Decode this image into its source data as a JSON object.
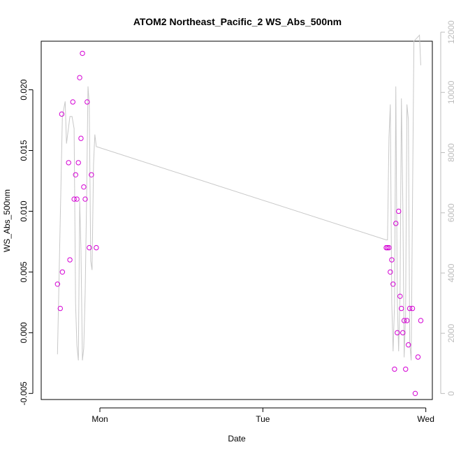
{
  "chart_data": {
    "type": "scatter",
    "title": "ATOM2 Northeast_Pacific_2 WS_Abs_500nm",
    "xlabel": "Date",
    "ylabel": "WS_Abs_500nm",
    "x_ticks": [
      {
        "label": "Mon",
        "value": 1.0
      },
      {
        "label": "Tue",
        "value": 2.0
      },
      {
        "label": "Wed",
        "value": 3.0
      }
    ],
    "xlim": [
      0.64,
      3.04
    ],
    "ylim": [
      -0.0055,
      0.024
    ],
    "y_ticks": [
      -0.005,
      0.0,
      0.005,
      0.01,
      0.015,
      0.02
    ],
    "y_tick_labels": [
      "-0.005",
      "0.000",
      "0.005",
      "0.010",
      "0.015",
      "0.020"
    ],
    "y2lim": [
      -200,
      11700
    ],
    "y2_ticks": [
      0,
      2000,
      4000,
      6000,
      8000,
      10000,
      12000
    ],
    "y2_tick_labels": [
      "0",
      "2000",
      "4000",
      "6000",
      "8000",
      "10000",
      "12000"
    ],
    "grid": false,
    "series": [
      {
        "color": "#d400d4",
        "marker": "open-circle",
        "points": [
          {
            "x": 0.74,
            "y": 0.004
          },
          {
            "x": 0.757,
            "y": 0.002
          },
          {
            "x": 0.766,
            "y": 0.018
          },
          {
            "x": 0.77,
            "y": 0.005
          },
          {
            "x": 0.808,
            "y": 0.014
          },
          {
            "x": 0.816,
            "y": 0.006
          },
          {
            "x": 0.834,
            "y": 0.019
          },
          {
            "x": 0.842,
            "y": 0.011
          },
          {
            "x": 0.851,
            "y": 0.013
          },
          {
            "x": 0.859,
            "y": 0.011
          },
          {
            "x": 0.868,
            "y": 0.014
          },
          {
            "x": 0.876,
            "y": 0.021
          },
          {
            "x": 0.884,
            "y": 0.016
          },
          {
            "x": 0.893,
            "y": 0.023
          },
          {
            "x": 0.901,
            "y": 0.012
          },
          {
            "x": 0.91,
            "y": 0.011
          },
          {
            "x": 0.922,
            "y": 0.019
          },
          {
            "x": 0.935,
            "y": 0.007
          },
          {
            "x": 0.948,
            "y": 0.013
          },
          {
            "x": 0.978,
            "y": 0.007
          },
          {
            "x": 2.757,
            "y": 0.007
          },
          {
            "x": 2.765,
            "y": 0.007
          },
          {
            "x": 2.774,
            "y": 0.007
          },
          {
            "x": 2.782,
            "y": 0.005
          },
          {
            "x": 2.791,
            "y": 0.006
          },
          {
            "x": 2.799,
            "y": 0.004
          },
          {
            "x": 2.808,
            "y": -0.003
          },
          {
            "x": 2.816,
            "y": 0.009
          },
          {
            "x": 2.825,
            "y": 0.0
          },
          {
            "x": 2.833,
            "y": 0.01
          },
          {
            "x": 2.842,
            "y": 0.003
          },
          {
            "x": 2.85,
            "y": 0.002
          },
          {
            "x": 2.859,
            "y": 0.0
          },
          {
            "x": 2.867,
            "y": 0.001
          },
          {
            "x": 2.876,
            "y": -0.003
          },
          {
            "x": 2.884,
            "y": 0.001
          },
          {
            "x": 2.893,
            "y": -0.001
          },
          {
            "x": 2.901,
            "y": 0.002
          },
          {
            "x": 2.918,
            "y": 0.002
          },
          {
            "x": 2.935,
            "y": -0.005
          },
          {
            "x": 2.952,
            "y": -0.002
          },
          {
            "x": 2.969,
            "y": 0.001
          }
        ]
      },
      {
        "color": "#c8c8c8",
        "marker": "line",
        "axis": "right",
        "points": [
          {
            "x": 0.74,
            "y": 1300
          },
          {
            "x": 0.77,
            "y": 9200
          },
          {
            "x": 0.787,
            "y": 9700
          },
          {
            "x": 0.795,
            "y": 8300
          },
          {
            "x": 0.816,
            "y": 9200
          },
          {
            "x": 0.829,
            "y": 9200
          },
          {
            "x": 0.842,
            "y": 8800
          },
          {
            "x": 0.851,
            "y": 3000
          },
          {
            "x": 0.859,
            "y": 1600
          },
          {
            "x": 0.868,
            "y": 1100
          },
          {
            "x": 0.876,
            "y": 6400
          },
          {
            "x": 0.884,
            "y": 4800
          },
          {
            "x": 0.893,
            "y": 1100
          },
          {
            "x": 0.901,
            "y": 1500
          },
          {
            "x": 0.91,
            "y": 3400
          },
          {
            "x": 0.918,
            "y": 6300
          },
          {
            "x": 0.927,
            "y": 10200
          },
          {
            "x": 0.935,
            "y": 9600
          },
          {
            "x": 0.944,
            "y": 4400
          },
          {
            "x": 0.952,
            "y": 4100
          },
          {
            "x": 0.961,
            "y": 7600
          },
          {
            "x": 0.969,
            "y": 8600
          },
          {
            "x": 0.978,
            "y": 8200
          },
          {
            "x": 2.757,
            "y": 5100
          },
          {
            "x": 2.765,
            "y": 5100
          },
          {
            "x": 2.774,
            "y": 8500
          },
          {
            "x": 2.782,
            "y": 9600
          },
          {
            "x": 2.791,
            "y": 3000
          },
          {
            "x": 2.799,
            "y": 1400
          },
          {
            "x": 2.808,
            "y": 3000
          },
          {
            "x": 2.816,
            "y": 10200
          },
          {
            "x": 2.825,
            "y": 3100
          },
          {
            "x": 2.833,
            "y": 1400
          },
          {
            "x": 2.842,
            "y": 3400
          },
          {
            "x": 2.85,
            "y": 9800
          },
          {
            "x": 2.859,
            "y": 6200
          },
          {
            "x": 2.867,
            "y": 1200
          },
          {
            "x": 2.876,
            "y": 2600
          },
          {
            "x": 2.884,
            "y": 9600
          },
          {
            "x": 2.893,
            "y": 9100
          },
          {
            "x": 2.901,
            "y": 1700
          },
          {
            "x": 2.91,
            "y": 1100
          },
          {
            "x": 2.918,
            "y": 6100
          },
          {
            "x": 2.927,
            "y": 11700
          },
          {
            "x": 2.944,
            "y": 11800
          },
          {
            "x": 2.961,
            "y": 11900
          },
          {
            "x": 2.969,
            "y": 10900
          }
        ]
      }
    ]
  }
}
